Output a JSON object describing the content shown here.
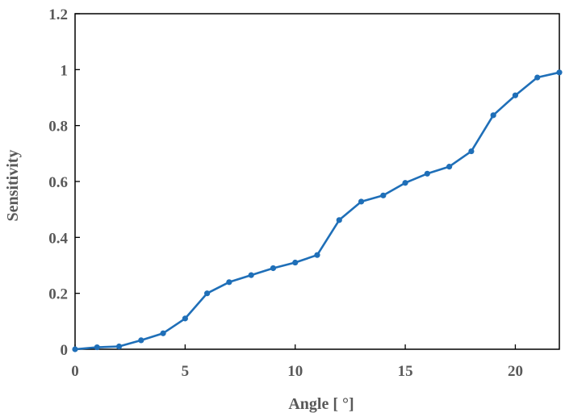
{
  "chart_data": {
    "type": "line",
    "title": "",
    "xlabel": "Angle [ °]",
    "ylabel": "Sensitivity",
    "xlim": [
      0,
      22
    ],
    "ylim": [
      0,
      1.2
    ],
    "x_ticks": [
      0,
      5,
      10,
      15,
      20
    ],
    "y_ticks": [
      0,
      0.2,
      0.4,
      0.6,
      0.8,
      1,
      1.2
    ],
    "x_tick_labels": [
      "0",
      "5",
      "10",
      "15",
      "20"
    ],
    "y_tick_labels": [
      "0",
      "0.2",
      "0.4",
      "0.6",
      "0.8",
      "1",
      "1.2"
    ],
    "grid": false,
    "legend": "none",
    "series": [
      {
        "color": "#1f6fb8",
        "x": [
          0,
          1,
          2,
          3,
          4,
          5,
          6,
          7,
          8,
          9,
          10,
          11,
          12,
          13,
          14,
          15,
          16,
          17,
          18,
          19,
          20,
          21,
          22
        ],
        "y": [
          0.0,
          0.007,
          0.01,
          0.032,
          0.057,
          0.11,
          0.2,
          0.24,
          0.265,
          0.29,
          0.31,
          0.337,
          0.462,
          0.528,
          0.55,
          0.595,
          0.628,
          0.653,
          0.708,
          0.837,
          0.908,
          0.972,
          0.99
        ]
      }
    ]
  }
}
